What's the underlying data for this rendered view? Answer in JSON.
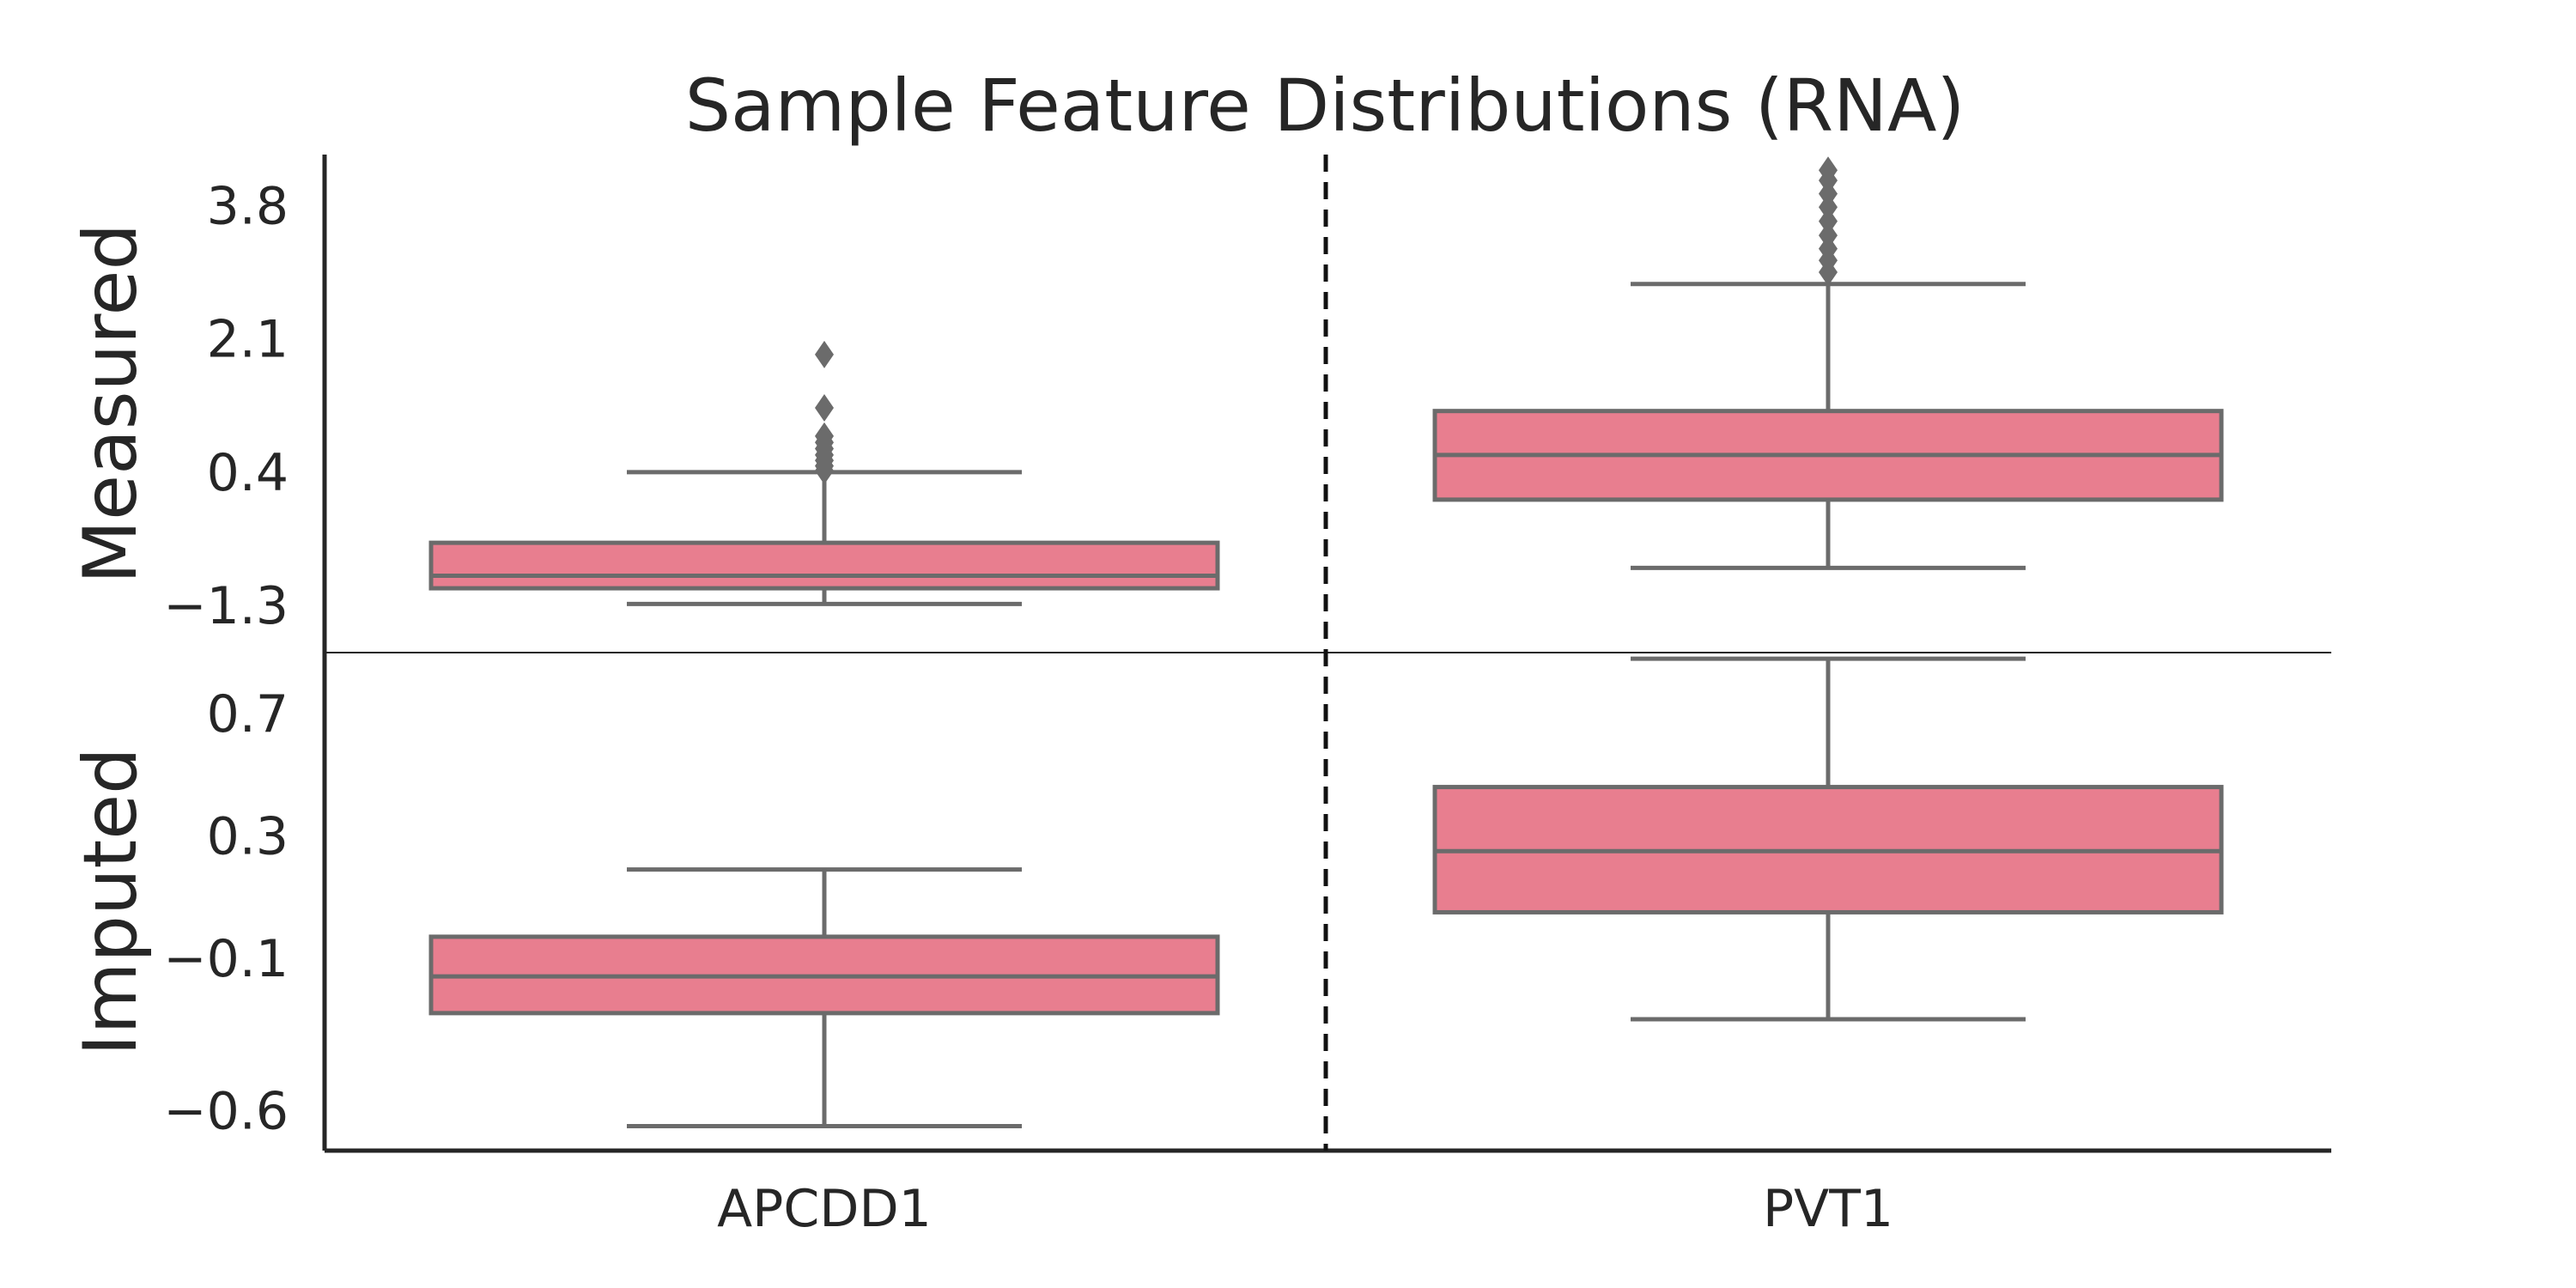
{
  "chart_data": {
    "type": "box",
    "title": "Sample Feature Distributions (RNA)",
    "categories": [
      "APCDD1",
      "PVT1"
    ],
    "box_color": "#e87e8f",
    "edge_color": "#6b6b6b",
    "panels": [
      {
        "ylabel": "Measured",
        "yticks": [
          -1.3,
          0.4,
          2.1,
          3.8
        ],
        "ylim": [
          -1.9,
          4.45
        ],
        "boxes": [
          {
            "category": "APCDD1",
            "whislo": -1.28,
            "q1": -1.08,
            "med": -0.92,
            "q3": -0.5,
            "whishi": 0.4,
            "fliers": [
              0.42,
              0.48,
              0.55,
              0.62,
              0.7,
              0.78,
              0.86,
              1.22,
              1.9
            ]
          },
          {
            "category": "PVT1",
            "whislo": -0.82,
            "q1": 0.05,
            "med": 0.62,
            "q3": 1.18,
            "whishi": 2.8,
            "fliers": [
              2.95,
              3.1,
              3.25,
              3.42,
              3.6,
              3.78,
              3.95,
              4.12,
              4.25
            ]
          }
        ]
      },
      {
        "ylabel": "Imputed",
        "yticks": [
          -0.6,
          -0.1,
          0.3,
          0.7
        ],
        "ylim": [
          -0.73,
          0.9
        ],
        "boxes": [
          {
            "category": "APCDD1",
            "whislo": -0.65,
            "q1": -0.28,
            "med": -0.16,
            "q3": -0.03,
            "whishi": 0.19,
            "fliers": []
          },
          {
            "category": "PVT1",
            "whislo": -0.3,
            "q1": 0.05,
            "med": 0.25,
            "q3": 0.46,
            "whishi": 0.88,
            "fliers": []
          }
        ]
      }
    ],
    "grid": false,
    "legend": false
  }
}
